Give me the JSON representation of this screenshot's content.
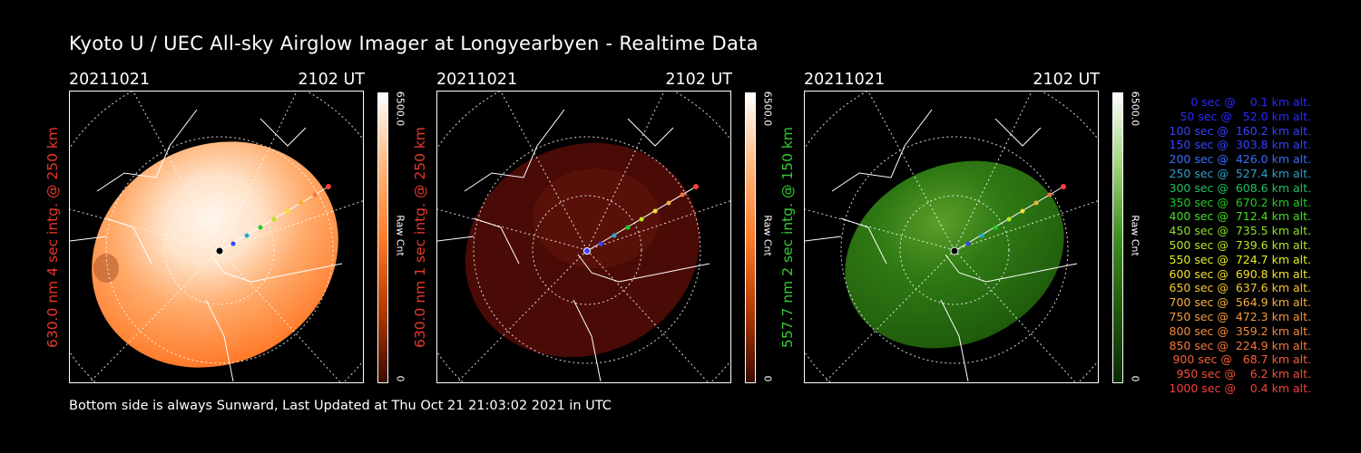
{
  "title": "Kyoto U / UEC All-sky Airglow Imager at Longyearbyen - Realtime Data",
  "footer": "Bottom side is always Sunward, Last Updated at Thu Oct 21 21:03:02 2021 in UTC",
  "panels": [
    {
      "date": "20211021",
      "time": "2102 UT",
      "side_label": "630.0 nm 4 sec intg. @ 250 km",
      "side_color": "#e8392a",
      "cbar_max": "6500.0",
      "cbar_min": "0",
      "cbar_unit": "Raw Cnt",
      "theme": "orange"
    },
    {
      "date": "20211021",
      "time": "2102 UT",
      "side_label": "630.0 nm 1 sec intg. @ 250 km",
      "side_color": "#e8392a",
      "cbar_max": "6500.0",
      "cbar_min": "0",
      "cbar_unit": "Raw Cnt",
      "theme": "red"
    },
    {
      "date": "20211021",
      "time": "2102 UT",
      "side_label": "557.7 nm 2 sec intg. @ 150 km",
      "side_color": "#33cc33",
      "cbar_max": "6500.0",
      "cbar_min": "0",
      "cbar_unit": "Raw Cnt",
      "theme": "green"
    }
  ],
  "legend": [
    {
      "text": "0 sec @    0.1 km alt.",
      "color": "#2a2aff"
    },
    {
      "text": "50 sec @   52.0 km alt.",
      "color": "#2a2aff"
    },
    {
      "text": "100 sec @  160.2 km alt.",
      "color": "#3344ff"
    },
    {
      "text": "150 sec @  303.8 km alt.",
      "color": "#3344ff"
    },
    {
      "text": "200 sec @  426.0 km alt.",
      "color": "#3b6cff"
    },
    {
      "text": "250 sec @  527.4 km alt.",
      "color": "#2aa0c8"
    },
    {
      "text": "300 sec @  608.6 km alt.",
      "color": "#22c060"
    },
    {
      "text": "350 sec @  670.2 km alt.",
      "color": "#22cc22"
    },
    {
      "text": "400 sec @  712.4 km alt.",
      "color": "#44dd22"
    },
    {
      "text": "450 sec @  735.5 km alt.",
      "color": "#88e022"
    },
    {
      "text": "500 sec @  739.6 km alt.",
      "color": "#b8e622"
    },
    {
      "text": "550 sec @  724.7 km alt.",
      "color": "#e6ee22"
    },
    {
      "text": "600 sec @  690.8 km alt.",
      "color": "#f5e028"
    },
    {
      "text": "650 sec @  637.6 km alt.",
      "color": "#f5c830"
    },
    {
      "text": "700 sec @  564.9 km alt.",
      "color": "#f5b038"
    },
    {
      "text": "750 sec @  472.3 km alt.",
      "color": "#f59a3a"
    },
    {
      "text": "800 sec @  359.2 km alt.",
      "color": "#f58a3a"
    },
    {
      "text": "850 sec @  224.9 km alt.",
      "color": "#f5783a"
    },
    {
      "text": "900 sec @   68.7 km alt.",
      "color": "#f5603a"
    },
    {
      "text": "950 sec @    6.2 km alt.",
      "color": "#f5503a"
    },
    {
      "text": "1000 sec @    0.4 km alt.",
      "color": "#f5403a"
    }
  ]
}
